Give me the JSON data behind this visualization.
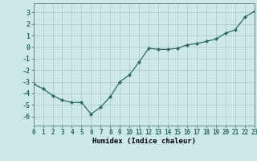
{
  "x": [
    0,
    1,
    2,
    3,
    4,
    5,
    6,
    7,
    8,
    9,
    10,
    11,
    12,
    13,
    14,
    15,
    16,
    17,
    18,
    19,
    20,
    21,
    22,
    23
  ],
  "y": [
    -3.2,
    -3.6,
    -4.2,
    -4.6,
    -4.8,
    -4.8,
    -5.8,
    -5.2,
    -4.3,
    -3.0,
    -2.4,
    -1.3,
    -0.1,
    -0.2,
    -0.2,
    -0.1,
    0.2,
    0.3,
    0.5,
    0.7,
    1.2,
    1.5,
    2.6,
    3.1
  ],
  "xlabel": "Humidex (Indice chaleur)",
  "ylim": [
    -6.8,
    3.8
  ],
  "xlim": [
    0,
    23
  ],
  "yticks": [
    -6,
    -5,
    -4,
    -3,
    -2,
    -1,
    0,
    1,
    2,
    3
  ],
  "xticks": [
    0,
    1,
    2,
    3,
    4,
    5,
    6,
    7,
    8,
    9,
    10,
    11,
    12,
    13,
    14,
    15,
    16,
    17,
    18,
    19,
    20,
    21,
    22,
    23
  ],
  "line_color": "#2e6b5e",
  "marker": "D",
  "marker_size": 2.2,
  "bg_color": "#cce8e8",
  "grid_color": "#b0cccc",
  "spine_color": "#6a8a8a",
  "tick_fontsize": 5.5,
  "xlabel_fontsize": 6.5
}
